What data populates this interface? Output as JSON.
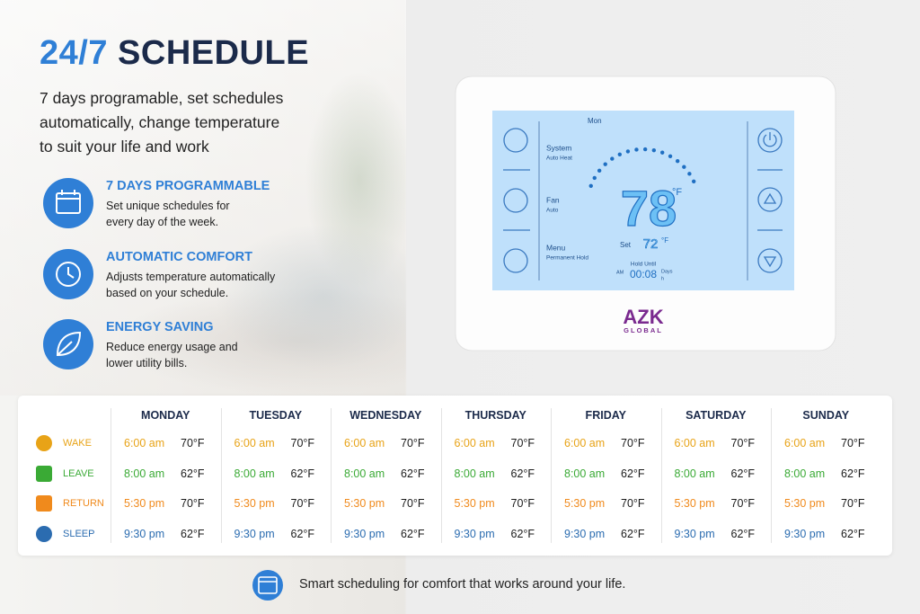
{
  "header": {
    "title_number": "24/7",
    "title_word": "SCHEDULE",
    "subtitle_lines": [
      "7 days programable, set schedules",
      "automatically, change temperature",
      "to suit your life and work"
    ]
  },
  "features": [
    {
      "title": "7 DAYS PROGRAMMABLE",
      "lines": [
        "Set unique schedules for",
        "every day of the week."
      ]
    },
    {
      "title": "AUTOMATIC COMFORT",
      "lines": [
        "Adjusts temperature automatically",
        "based on your schedule."
      ]
    },
    {
      "title": "ENERGY SAVING",
      "lines": [
        "Reduce energy usage and",
        "lower utility bills."
      ]
    }
  ],
  "thermostat": {
    "day": "Mon",
    "system": "System",
    "system_mode": "Auto Heat",
    "fan": "Fan",
    "fan_mode": "Auto",
    "menu": "Menu",
    "menu_mode": "Permanent Hold",
    "temperature": "78",
    "unit": "°F",
    "set": "Set",
    "set_temperature": "72",
    "set_unit": "°F",
    "hold_until": "Hold Until",
    "am": "AM",
    "hold_time": "00:08",
    "days": "Days",
    "h": "h",
    "brand": "AZK",
    "brand_sub": "GLOBAL"
  },
  "schedule": {
    "days": [
      "MONDAY",
      "TUESDAY",
      "WEDNESDAY",
      "THURSDAY",
      "FRIDAY",
      "SATURDAY",
      "SUNDAY"
    ],
    "rows": [
      {
        "label": "WAKE",
        "cells": [
          [
            "6:00 am",
            "70°F"
          ],
          [
            "6:00 am",
            "70°F"
          ],
          [
            "6:00 am",
            "70°F"
          ],
          [
            "6:00 am",
            "70°F"
          ],
          [
            "6:00 am",
            "70°F"
          ],
          [
            "6:00 am",
            "70°F"
          ],
          [
            "6:00 am",
            "70°F"
          ]
        ]
      },
      {
        "label": "LEAVE",
        "cells": [
          [
            "8:00 am",
            "62°F"
          ],
          [
            "8:00 am",
            "62°F"
          ],
          [
            "8:00 am",
            "62°F"
          ],
          [
            "8:00 am",
            "62°F"
          ],
          [
            "8:00 am",
            "62°F"
          ],
          [
            "8:00 am",
            "62°F"
          ],
          [
            "8:00 am",
            "62°F"
          ]
        ]
      },
      {
        "label": "RETURN",
        "cells": [
          [
            "5:30 pm",
            "70°F"
          ],
          [
            "5:30 pm",
            "70°F"
          ],
          [
            "5:30 pm",
            "70°F"
          ],
          [
            "5:30 pm",
            "70°F"
          ],
          [
            "5:30 pm",
            "70°F"
          ],
          [
            "5:30 pm",
            "70°F"
          ],
          [
            "5:30 pm",
            "70°F"
          ]
        ]
      },
      {
        "label": "SLEEP",
        "cells": [
          [
            "9:30 pm",
            "62°F"
          ],
          [
            "9:30 pm",
            "62°F"
          ],
          [
            "9:30 pm",
            "62°F"
          ],
          [
            "9:30 pm",
            "62°F"
          ],
          [
            "9:30 pm",
            "62°F"
          ],
          [
            "9:30 pm",
            "62°F"
          ],
          [
            "9:30 pm",
            "62°F"
          ]
        ]
      }
    ]
  },
  "footer": {
    "text": "Smart scheduling for comfort that works around your life."
  }
}
